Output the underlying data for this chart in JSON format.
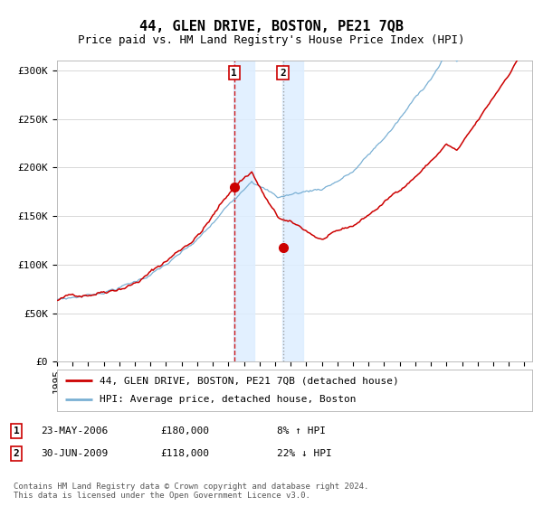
{
  "title": "44, GLEN DRIVE, BOSTON, PE21 7QB",
  "subtitle": "Price paid vs. HM Land Registry's House Price Index (HPI)",
  "ylim": [
    0,
    310000
  ],
  "yticks": [
    0,
    50000,
    100000,
    150000,
    200000,
    250000,
    300000
  ],
  "ytick_labels": [
    "£0",
    "£50K",
    "£100K",
    "£150K",
    "£200K",
    "£250K",
    "£300K"
  ],
  "background_color": "#ffffff",
  "plot_bg_color": "#ffffff",
  "grid_color": "#d8d8d8",
  "transaction1": {
    "date_num": 2006.37,
    "price": 180000,
    "label": "1",
    "date_str": "23-MAY-2006",
    "pct": "8% ↑ HPI"
  },
  "transaction2": {
    "date_num": 2009.5,
    "price": 118000,
    "label": "2",
    "date_str": "30-JUN-2009",
    "pct": "22% ↓ HPI"
  },
  "legend_line1": "44, GLEN DRIVE, BOSTON, PE21 7QB (detached house)",
  "legend_line2": "HPI: Average price, detached house, Boston",
  "footer": "Contains HM Land Registry data © Crown copyright and database right 2024.\nThis data is licensed under the Open Government Licence v3.0.",
  "line_color_red": "#cc0000",
  "line_color_blue": "#7ab0d4",
  "shade_color": "#ddeeff",
  "title_fontsize": 11,
  "subtitle_fontsize": 9,
  "tick_fontsize": 8,
  "legend_fontsize": 8,
  "annot_fontsize": 8
}
